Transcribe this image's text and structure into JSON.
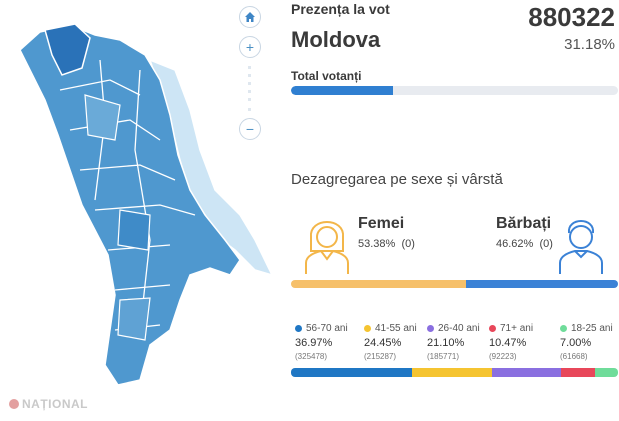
{
  "title": "Prezența la vot",
  "region": "Moldova",
  "total_count": "880322",
  "total_percent": "31.18%",
  "total_label": "Total votanți",
  "total_progress": 0.3118,
  "section_title": "Dezagregarea pe sexe și vârstă",
  "genders": [
    {
      "name": "Femei",
      "percent": "53.38%",
      "extra": "(0)",
      "share": 53.38,
      "color": "#f6c06a",
      "icon": "female-person-icon"
    },
    {
      "name": "Bărbați",
      "percent": "46.62%",
      "extra": "(0)",
      "share": 46.62,
      "color": "#3b82d6",
      "icon": "male-person-icon"
    }
  ],
  "age_groups": [
    {
      "label": "56-70 ani",
      "percent": "36.97%",
      "count": "(325478)",
      "share": 36.97,
      "color": "#1f77c4"
    },
    {
      "label": "41-55 ani",
      "percent": "24.45%",
      "count": "(215287)",
      "share": 24.45,
      "color": "#f5c431"
    },
    {
      "label": "26-40 ani",
      "percent": "21.10%",
      "count": "(185771)",
      "share": 21.1,
      "color": "#8a6fe0"
    },
    {
      "label": "71+ ani",
      "percent": "10.47%",
      "count": "(92223)",
      "share": 10.47,
      "color": "#e8475a"
    },
    {
      "label": "18-25 ani",
      "percent": "7.00%",
      "count": "(61668)",
      "share": 7.0,
      "color": "#6fdc9a"
    }
  ],
  "map_controls": {
    "home": "home-icon",
    "zoom_in": "+",
    "zoom_out": "−"
  },
  "logo_text": "NAȚIONAL"
}
